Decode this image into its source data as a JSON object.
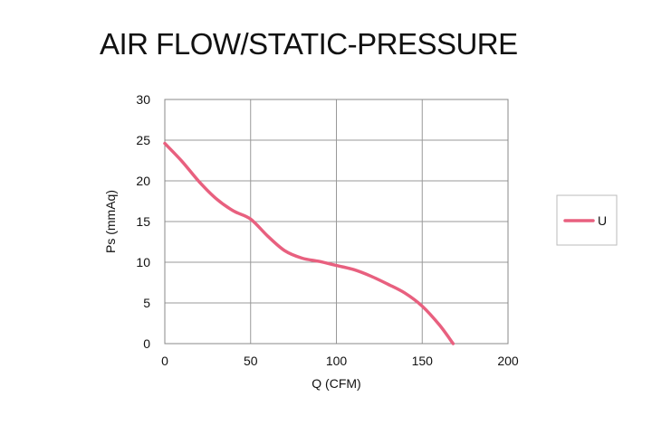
{
  "chart_data": {
    "type": "line",
    "title": "AIR FLOW/STATIC-PRESSURE",
    "xlabel": "Q (CFM)",
    "ylabel": "Ps (mmAq)",
    "xlim": [
      0,
      200
    ],
    "ylim": [
      0,
      30
    ],
    "xticks": [
      0,
      50,
      100,
      150,
      200
    ],
    "yticks": [
      0,
      5,
      10,
      15,
      20,
      25,
      30
    ],
    "grid": true,
    "legend_position": "right",
    "series": [
      {
        "name": "U",
        "color": "#e8607f",
        "x": [
          0,
          10,
          20,
          30,
          40,
          50,
          60,
          70,
          80,
          90,
          100,
          110,
          120,
          130,
          140,
          150,
          160,
          168
        ],
        "y": [
          24.6,
          22.4,
          19.9,
          17.8,
          16.3,
          15.3,
          13.2,
          11.4,
          10.5,
          10.1,
          9.6,
          9.1,
          8.3,
          7.3,
          6.2,
          4.6,
          2.3,
          0
        ]
      }
    ]
  }
}
